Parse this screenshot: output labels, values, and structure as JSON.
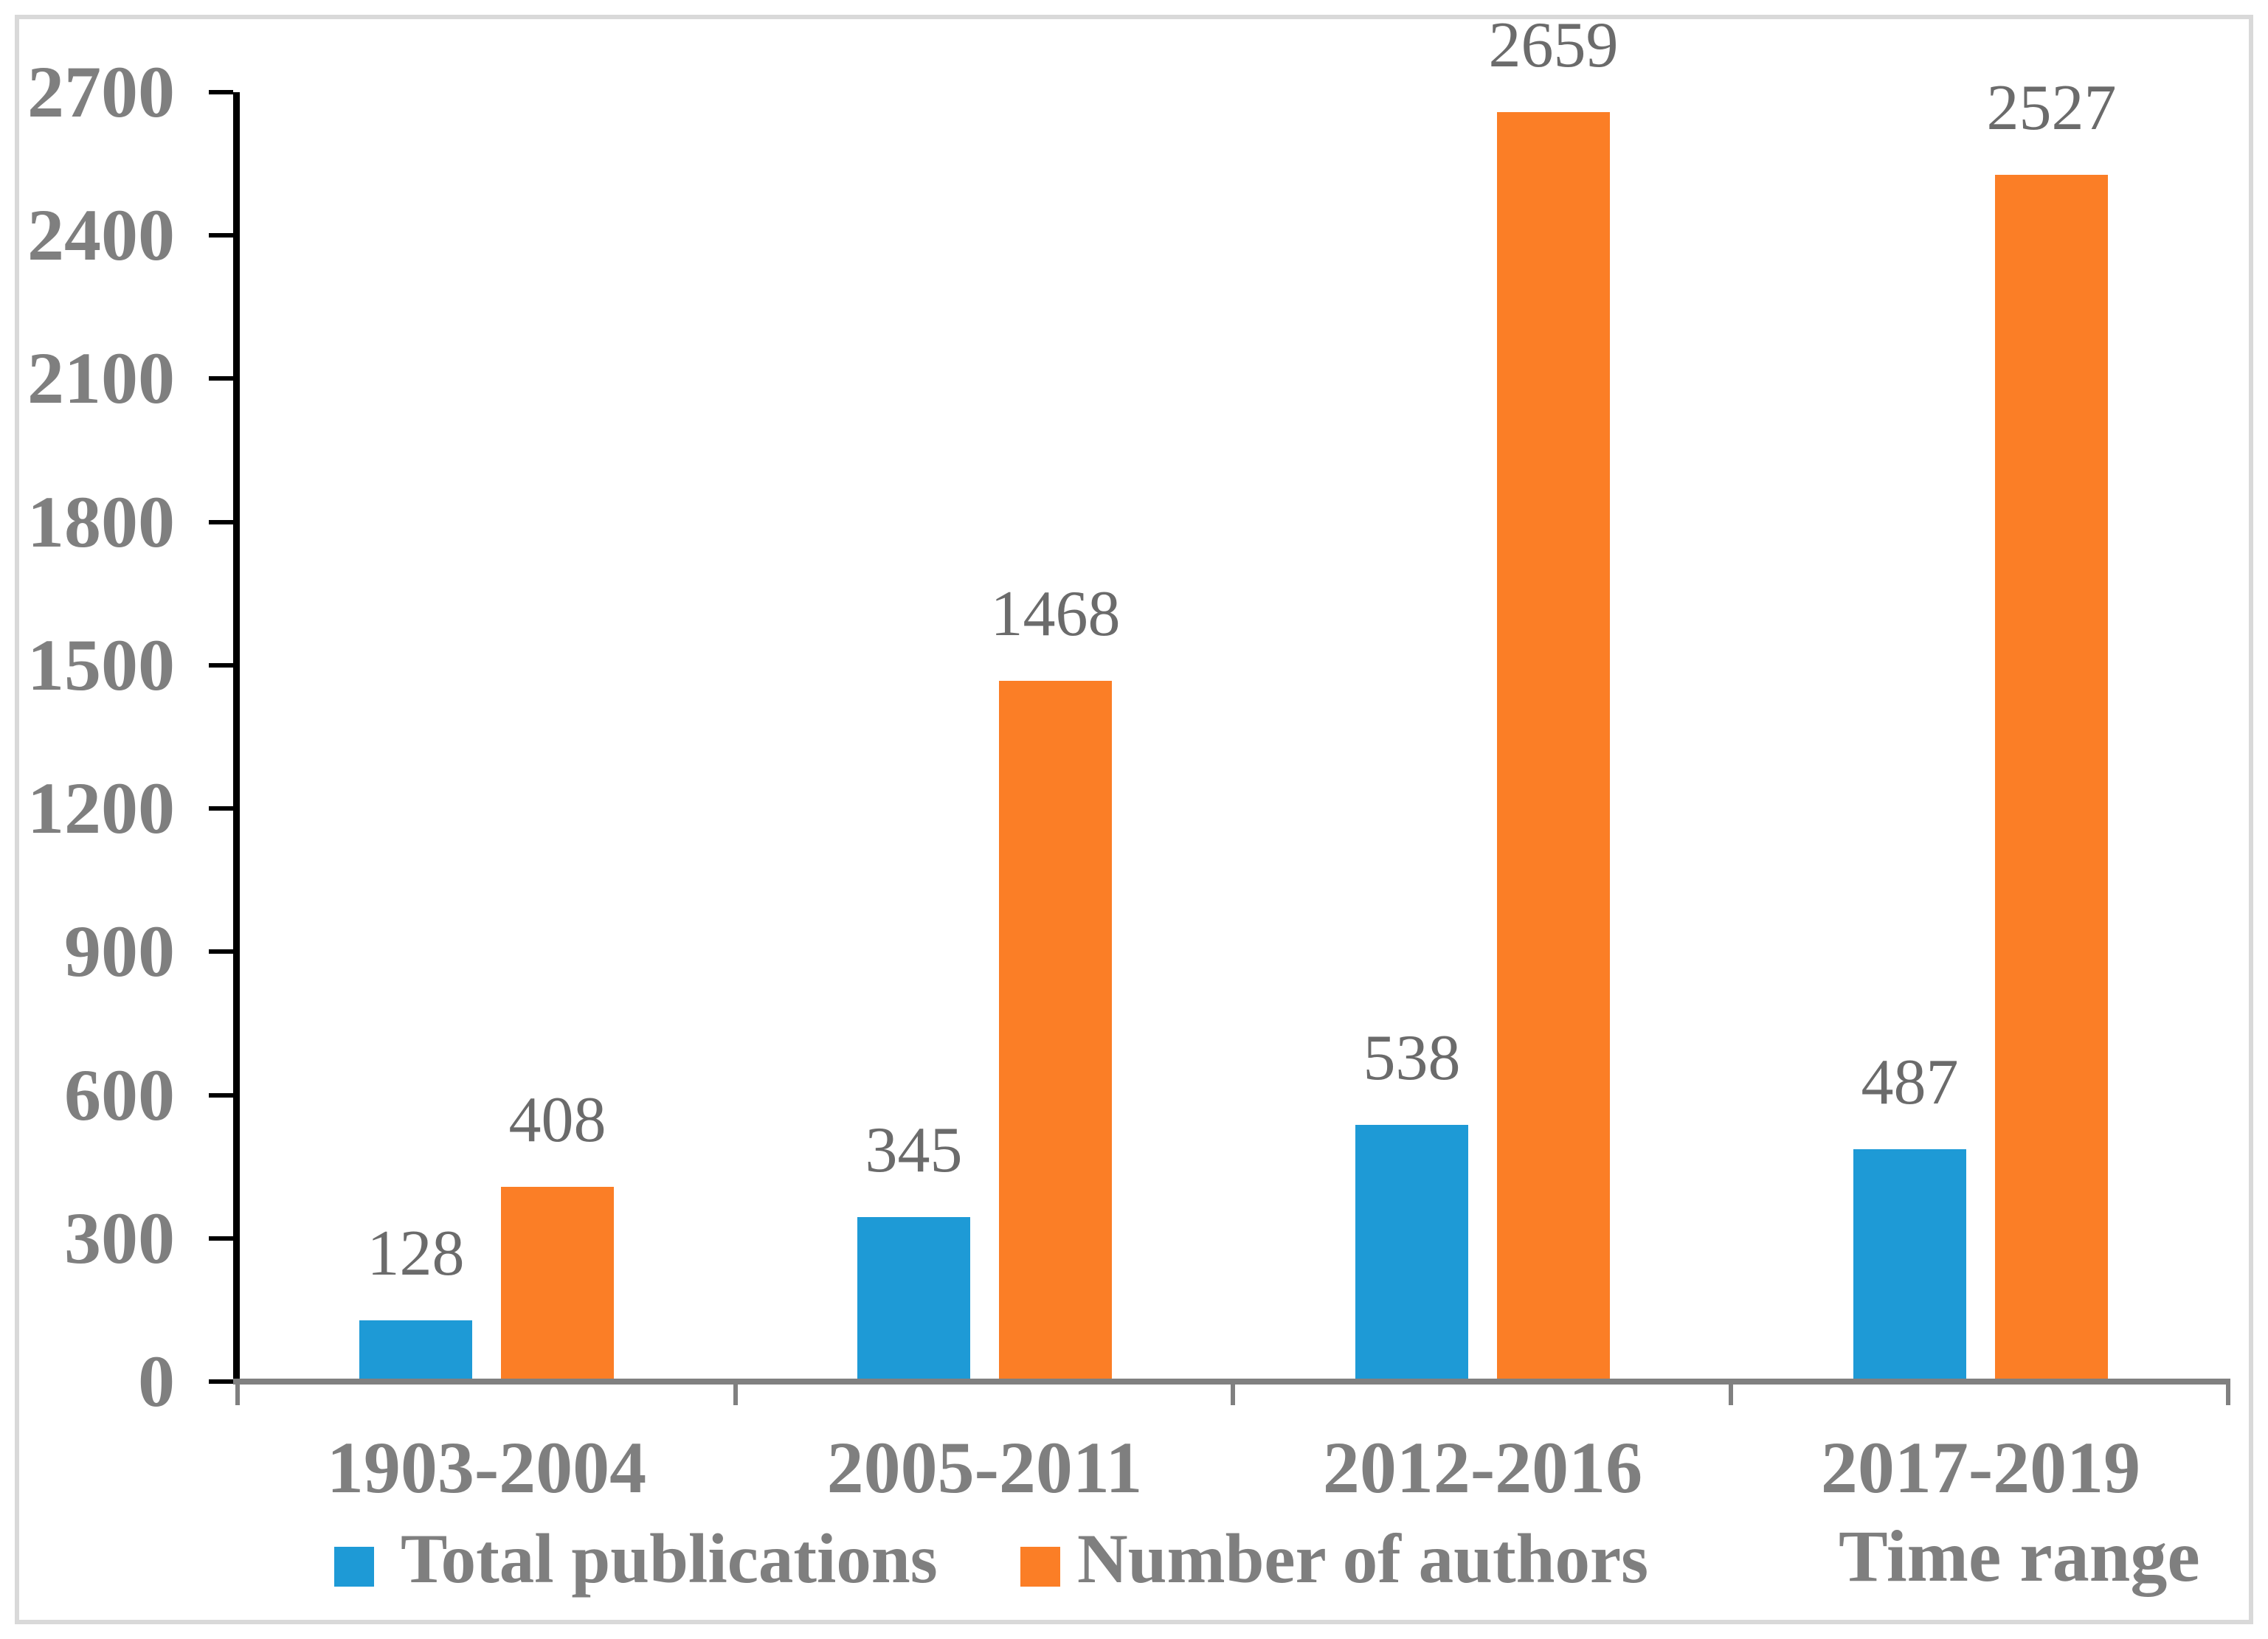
{
  "chart_data": {
    "type": "bar",
    "title": "",
    "xlabel": "Time range",
    "ylabel": "",
    "categories": [
      "1903-2004",
      "2005-2011",
      "2012-2016",
      "2017-2019"
    ],
    "series": [
      {
        "name": "Total publications",
        "color": "#1E9AD6",
        "values": [
          128,
          345,
          538,
          487
        ]
      },
      {
        "name": "Number of authors",
        "color": "#FB7E26",
        "values": [
          408,
          1468,
          2659,
          2527
        ]
      }
    ],
    "ylim": [
      0,
      2700
    ],
    "ytick_step": 300,
    "yticks": [
      0,
      300,
      600,
      900,
      1200,
      1500,
      1800,
      2100,
      2400,
      2700
    ],
    "grid": false,
    "data_labels": true,
    "legend_position": "bottom",
    "colors": {
      "label_gray": "#7F7F7F",
      "data_label_gray": "#6B6B6B",
      "y_axis_black": "#000000",
      "x_axis_gray": "#808080",
      "frame_gray": "#D9D9D9"
    }
  }
}
